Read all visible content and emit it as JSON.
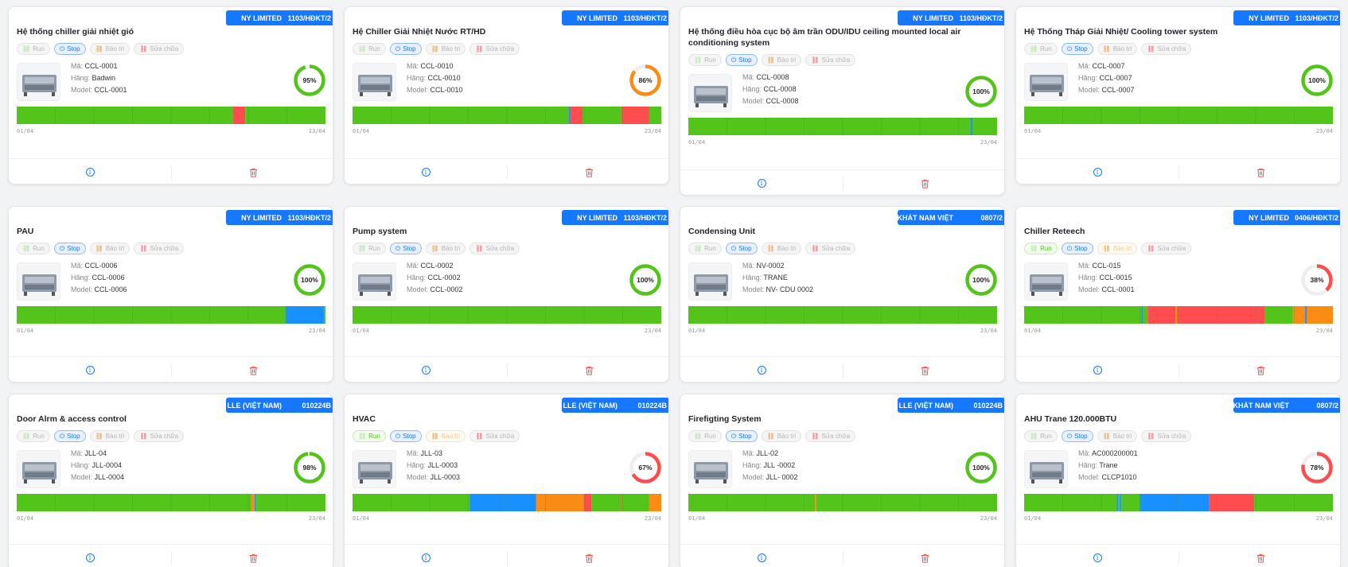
{
  "ui": {
    "status_labels": {
      "run": "Run",
      "stop": "Stop",
      "maint": "Bảo trì",
      "repair": "Sửa chữa"
    },
    "colors": {
      "green": "#52c41a",
      "red": "#ff4d4f",
      "blue": "#1890ff",
      "orange": "#fa8c16",
      "primary": "#1677ff"
    }
  },
  "cards": [
    {
      "tag_left": "NY LIMITED",
      "tag_right": "1103/HĐKT/2",
      "title": "Hệ thống chiller giải nhiệt gió",
      "run_on": false,
      "maint_faded": false,
      "fields": [
        {
          "label": "Mã:",
          "value": "CCL-0001"
        },
        {
          "label": "Hãng:",
          "value": "Badwin"
        },
        {
          "label": "Model:",
          "value": "CCL-0001"
        }
      ],
      "thumb_icon": "chiller-photo",
      "percent": 95,
      "percent_label": "95%",
      "ring_color": "#52c41a",
      "segments": [
        {
          "from": 0,
          "to": 0.7,
          "color": "#52c41a"
        },
        {
          "from": 0.7,
          "to": 0.74,
          "color": "#ff4d4f"
        },
        {
          "from": 0.74,
          "to": 1,
          "color": "#52c41a"
        }
      ],
      "date_start": "01/04",
      "date_end": "23/04"
    },
    {
      "tag_left": "NY LIMITED",
      "tag_right": "1103/HĐKT/2",
      "title": "Hệ Chiller Giải Nhiệt Nước RT/HD",
      "run_on": false,
      "maint_faded": false,
      "fields": [
        {
          "label": "Mã:",
          "value": "CCL-0010"
        },
        {
          "label": "Hãng:",
          "value": "CCL-0010"
        },
        {
          "label": "Model:",
          "value": "CCL-0010"
        }
      ],
      "thumb_icon": "water-chiller-photo",
      "percent": 86,
      "percent_label": "86%",
      "ring_color": "#fa8c16",
      "segments": [
        {
          "from": 0,
          "to": 0.7,
          "color": "#52c41a"
        },
        {
          "from": 0.7,
          "to": 0.705,
          "color": "#1890ff"
        },
        {
          "from": 0.705,
          "to": 0.745,
          "color": "#ff4d4f"
        },
        {
          "from": 0.745,
          "to": 0.87,
          "color": "#52c41a"
        },
        {
          "from": 0.87,
          "to": 0.96,
          "color": "#ff4d4f"
        },
        {
          "from": 0.96,
          "to": 1,
          "color": "#52c41a"
        }
      ],
      "date_start": "01/04",
      "date_end": "23/04"
    },
    {
      "tag_left": "NY LIMITED",
      "tag_right": "1103/HĐKT/2",
      "title": "Hệ thống điều hòa cục bộ âm trần ODU/IDU ceiling mounted local air conditioning system",
      "run_on": false,
      "maint_faded": false,
      "fields": [
        {
          "label": "Mã:",
          "value": "CCL-0008"
        },
        {
          "label": "Hãng:",
          "value": "CCL-0008"
        },
        {
          "label": "Model:",
          "value": "CCL-0008"
        }
      ],
      "thumb_icon": "ceiling-ac-photo",
      "percent": 100,
      "percent_label": "100%",
      "ring_color": "#52c41a",
      "segments": [
        {
          "from": 0,
          "to": 0.915,
          "color": "#52c41a"
        },
        {
          "from": 0.915,
          "to": 0.92,
          "color": "#1890ff"
        },
        {
          "from": 0.92,
          "to": 1,
          "color": "#52c41a"
        }
      ],
      "date_start": "01/04",
      "date_end": "23/04"
    },
    {
      "tag_left": "NY LIMITED",
      "tag_right": "1103/HĐKT/2",
      "title": "Hệ Thống Tháp Giải Nhiệt/ Cooling tower system",
      "run_on": false,
      "maint_faded": false,
      "fields": [
        {
          "label": "Mã:",
          "value": "CCL-0007"
        },
        {
          "label": "Hãng:",
          "value": "CCL-0007"
        },
        {
          "label": "Model:",
          "value": "CCL-0007"
        }
      ],
      "thumb_icon": "cooling-tower-photo",
      "percent": 100,
      "percent_label": "100%",
      "ring_color": "#52c41a",
      "segments": [
        {
          "from": 0,
          "to": 1,
          "color": "#52c41a"
        }
      ],
      "date_start": "01/04",
      "date_end": "23/04"
    },
    {
      "tag_left": "NY LIMITED",
      "tag_right": "1103/HĐKT/2",
      "title": "PAU",
      "run_on": false,
      "maint_faded": false,
      "fields": [
        {
          "label": "Mã:",
          "value": "CCL-0006"
        },
        {
          "label": "Hãng:",
          "value": "CCL-0006"
        },
        {
          "label": "Model:",
          "value": "CCL-0006"
        }
      ],
      "thumb_icon": "pau-unit-photo",
      "percent": 100,
      "percent_label": "100%",
      "ring_color": "#52c41a",
      "segments": [
        {
          "from": 0,
          "to": 0.87,
          "color": "#52c41a"
        },
        {
          "from": 0.87,
          "to": 0.995,
          "color": "#1890ff"
        },
        {
          "from": 0.995,
          "to": 1,
          "color": "#52c41a"
        }
      ],
      "date_start": "01/04",
      "date_end": "23/04"
    },
    {
      "tag_left": "NY LIMITED",
      "tag_right": "1103/HĐKT/2",
      "title": "Pump system",
      "run_on": false,
      "maint_faded": false,
      "fields": [
        {
          "label": "Mã:",
          "value": "CCL-0002"
        },
        {
          "label": "Hãng:",
          "value": "CCL-0002"
        },
        {
          "label": "Model:",
          "value": "CCL-0002"
        }
      ],
      "thumb_icon": "pump-room-photo",
      "percent": 100,
      "percent_label": "100%",
      "ring_color": "#52c41a",
      "segments": [
        {
          "from": 0,
          "to": 1,
          "color": "#52c41a"
        }
      ],
      "date_start": "01/04",
      "date_end": "23/04"
    },
    {
      "tag_left": "I KHÁT NAM VIỆT",
      "tag_right": "0807/2",
      "title": "Condensing Unit",
      "run_on": false,
      "maint_faded": false,
      "fields": [
        {
          "label": "Mã:",
          "value": "NV-0002"
        },
        {
          "label": "Hãng:",
          "value": "TRANE"
        },
        {
          "label": "Model:",
          "value": "NV- CDU 0002"
        }
      ],
      "thumb_icon": "condensing-unit-photo",
      "percent": 100,
      "percent_label": "100%",
      "ring_color": "#52c41a",
      "segments": [
        {
          "from": 0,
          "to": 1,
          "color": "#52c41a"
        }
      ],
      "date_start": "01/04",
      "date_end": "23/04"
    },
    {
      "tag_left": "NY LIMITED",
      "tag_right": "0406/HĐKT/2",
      "title": "Chiller Reteech",
      "run_on": true,
      "maint_faded": true,
      "fields": [
        {
          "label": "Mã:",
          "value": "CCL-015"
        },
        {
          "label": "Hãng:",
          "value": "CCL-0015"
        },
        {
          "label": "Model:",
          "value": "CCL-0001"
        }
      ],
      "thumb_icon": "chiller-unit-photo",
      "percent": 38,
      "percent_label": "38%",
      "ring_color": "#ff4d4f",
      "segments": [
        {
          "from": 0,
          "to": 0.38,
          "color": "#52c41a"
        },
        {
          "from": 0.38,
          "to": 0.385,
          "color": "#1890ff"
        },
        {
          "from": 0.385,
          "to": 0.4,
          "color": "#52c41a"
        },
        {
          "from": 0.4,
          "to": 0.49,
          "color": "#ff4d4f"
        },
        {
          "from": 0.49,
          "to": 0.495,
          "color": "#fa8c16"
        },
        {
          "from": 0.495,
          "to": 0.78,
          "color": "#ff4d4f"
        },
        {
          "from": 0.78,
          "to": 0.87,
          "color": "#52c41a"
        },
        {
          "from": 0.87,
          "to": 0.91,
          "color": "#fa8c16"
        },
        {
          "from": 0.91,
          "to": 0.915,
          "color": "#1890ff"
        },
        {
          "from": 0.915,
          "to": 1,
          "color": "#fa8c16"
        }
      ],
      "date_start": "01/04",
      "date_end": "23/04"
    },
    {
      "tag_left": "LLE (VIỆT NAM)",
      "tag_right": "010224B",
      "title": "Door Alrm & access control",
      "run_on": false,
      "maint_faded": false,
      "fields": [
        {
          "label": "Mã:",
          "value": "JLL-04"
        },
        {
          "label": "Hãng:",
          "value": "JLL-0004"
        },
        {
          "label": "Model:",
          "value": "JLL-0004"
        }
      ],
      "thumb_icon": "door-alarm-photo",
      "percent": 98,
      "percent_label": "98%",
      "ring_color": "#52c41a",
      "segments": [
        {
          "from": 0,
          "to": 0.76,
          "color": "#52c41a"
        },
        {
          "from": 0.76,
          "to": 0.77,
          "color": "#fa8c16"
        },
        {
          "from": 0.77,
          "to": 0.775,
          "color": "#1890ff"
        },
        {
          "from": 0.775,
          "to": 1,
          "color": "#52c41a"
        }
      ],
      "date_start": "01/04",
      "date_end": "23/04"
    },
    {
      "tag_left": "LLE (VIỆT NAM)",
      "tag_right": "010224B",
      "title": "HVAC",
      "run_on": true,
      "maint_faded": true,
      "fields": [
        {
          "label": "Mã:",
          "value": "JLL-03"
        },
        {
          "label": "Hãng:",
          "value": "JLL-0003"
        },
        {
          "label": "Model:",
          "value": "JLL-0003"
        }
      ],
      "thumb_icon": "hvac-photo",
      "percent": 67,
      "percent_label": "67%",
      "ring_color": "#ff4d4f",
      "segments": [
        {
          "from": 0,
          "to": 0.38,
          "color": "#52c41a"
        },
        {
          "from": 0.38,
          "to": 0.595,
          "color": "#1890ff"
        },
        {
          "from": 0.595,
          "to": 0.75,
          "color": "#fa8c16"
        },
        {
          "from": 0.75,
          "to": 0.775,
          "color": "#ff4d4f"
        },
        {
          "from": 0.775,
          "to": 0.87,
          "color": "#52c41a"
        },
        {
          "from": 0.87,
          "to": 0.873,
          "color": "#ff4d4f"
        },
        {
          "from": 0.873,
          "to": 0.96,
          "color": "#52c41a"
        },
        {
          "from": 0.96,
          "to": 1,
          "color": "#fa8c16"
        }
      ],
      "date_start": "01/04",
      "date_end": "23/04"
    },
    {
      "tag_left": "LLE (VIỆT NAM)",
      "tag_right": "010224B",
      "title": "Firefigting System",
      "run_on": false,
      "maint_faded": false,
      "fields": [
        {
          "label": "Mã:",
          "value": "JLL-02"
        },
        {
          "label": "Hãng:",
          "value": "JLL -0002"
        },
        {
          "label": "Model:",
          "value": "JLL- 0002"
        }
      ],
      "thumb_icon": "firefighting-photo",
      "percent": 100,
      "percent_label": "100%",
      "ring_color": "#52c41a",
      "segments": [
        {
          "from": 0,
          "to": 0.41,
          "color": "#52c41a"
        },
        {
          "from": 0.41,
          "to": 0.415,
          "color": "#fa8c16"
        },
        {
          "from": 0.415,
          "to": 1,
          "color": "#52c41a"
        }
      ],
      "date_start": "01/04",
      "date_end": "23/04"
    },
    {
      "tag_left": "I KHÁT NAM VIỆT",
      "tag_right": "0807/2",
      "title": "AHU Trane 120.000BTU",
      "run_on": false,
      "maint_faded": false,
      "fields": [
        {
          "label": "Mã:",
          "value": "AC000200001"
        },
        {
          "label": "Hãng:",
          "value": "Trane"
        },
        {
          "label": "Model:",
          "value": "CLCP1010"
        }
      ],
      "thumb_icon": "ahu-photo",
      "percent": 78,
      "percent_label": "78%",
      "ring_color": "#ff4d4f",
      "segments": [
        {
          "from": 0,
          "to": 0.3,
          "color": "#52c41a"
        },
        {
          "from": 0.3,
          "to": 0.305,
          "color": "#1890ff"
        },
        {
          "from": 0.305,
          "to": 0.31,
          "color": "#52c41a"
        },
        {
          "from": 0.31,
          "to": 0.315,
          "color": "#1890ff"
        },
        {
          "from": 0.315,
          "to": 0.375,
          "color": "#52c41a"
        },
        {
          "from": 0.375,
          "to": 0.6,
          "color": "#1890ff"
        },
        {
          "from": 0.6,
          "to": 0.745,
          "color": "#ff4d4f"
        },
        {
          "from": 0.745,
          "to": 1,
          "color": "#52c41a"
        }
      ],
      "date_start": "01/04",
      "date_end": "23/04"
    }
  ]
}
